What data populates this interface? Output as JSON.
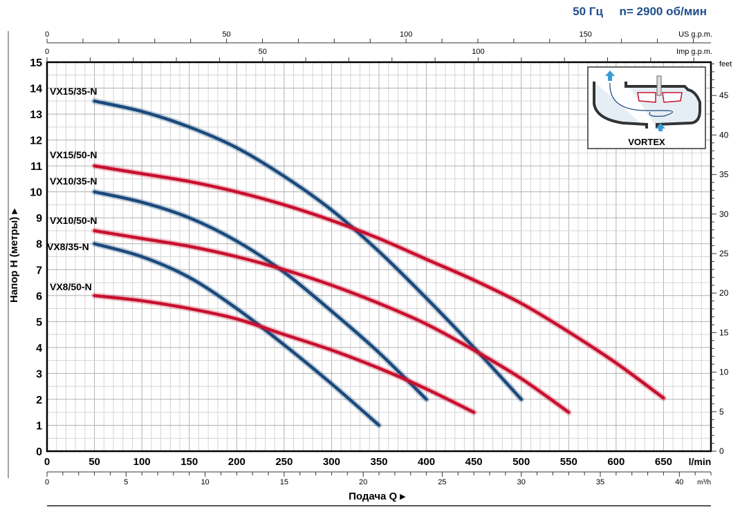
{
  "header": {
    "title": "50 Гц     n= 2900 об/мин",
    "title_color": "#1f4e8c"
  },
  "chart_data": {
    "type": "line",
    "xlabel": "Подача Q",
    "ylabel": "Напор H  (метры)",
    "x_unit": "l/min",
    "xlim": [
      0,
      700
    ],
    "ylim": [
      0,
      15
    ],
    "x_ticks": [
      0,
      50,
      100,
      150,
      200,
      250,
      300,
      350,
      400,
      450,
      500,
      550,
      600,
      650
    ],
    "y_ticks": [
      0,
      1,
      2,
      3,
      4,
      5,
      6,
      7,
      8,
      9,
      10,
      11,
      12,
      13,
      14,
      15
    ],
    "grid": true,
    "secondary_axes": {
      "us_gpm": {
        "label": "US g.p.m.",
        "ticks": [
          0,
          50,
          100,
          150
        ]
      },
      "imp_gpm": {
        "label": "Imp g.p.m.",
        "ticks": [
          0,
          50,
          100
        ]
      },
      "m3h": {
        "label": "m³/h",
        "ticks": [
          0,
          5,
          10,
          15,
          20,
          25,
          30,
          35,
          40
        ]
      },
      "feet": {
        "label": "feet",
        "ticks": [
          0,
          5,
          10,
          15,
          20,
          25,
          30,
          35,
          40,
          45
        ]
      }
    },
    "series": [
      {
        "name": "VX15/35-N",
        "color": "#1b4a7c",
        "x": [
          50,
          100,
          150,
          200,
          250,
          300,
          350,
          400,
          450,
          500
        ],
        "y": [
          13.5,
          13.1,
          12.5,
          11.7,
          10.6,
          9.3,
          7.7,
          5.9,
          4.0,
          2.0
        ]
      },
      {
        "name": "VX15/50-N",
        "color": "#c8102e",
        "x": [
          50,
          100,
          150,
          200,
          250,
          300,
          350,
          400,
          450,
          500,
          550,
          600,
          650
        ],
        "y": [
          11,
          10.7,
          10.4,
          10.0,
          9.5,
          8.9,
          8.2,
          7.4,
          6.6,
          5.7,
          4.6,
          3.4,
          2.05
        ]
      },
      {
        "name": "VX10/35-N",
        "color": "#1b4a7c",
        "x": [
          50,
          100,
          150,
          200,
          250,
          300,
          350,
          400
        ],
        "y": [
          10,
          9.6,
          9.0,
          8.1,
          6.9,
          5.4,
          3.8,
          2.0
        ]
      },
      {
        "name": "VX10/50-N",
        "color": "#c8102e",
        "x": [
          50,
          100,
          150,
          200,
          250,
          300,
          350,
          400,
          450,
          500,
          550
        ],
        "y": [
          8.5,
          8.2,
          7.9,
          7.5,
          7.0,
          6.4,
          5.7,
          4.9,
          3.9,
          2.8,
          1.5
        ]
      },
      {
        "name": "VX8/35-N",
        "color": "#1b4a7c",
        "x": [
          50,
          100,
          150,
          200,
          250,
          300,
          350
        ],
        "y": [
          8,
          7.5,
          6.7,
          5.5,
          4.1,
          2.6,
          1.0
        ]
      },
      {
        "name": "VX8/50-N",
        "color": "#c8102e",
        "x": [
          50,
          100,
          150,
          200,
          250,
          300,
          350,
          400,
          450
        ],
        "y": [
          6,
          5.8,
          5.5,
          5.1,
          4.5,
          3.9,
          3.2,
          2.4,
          1.5
        ]
      }
    ],
    "inset": {
      "label": "VORTEX"
    }
  }
}
